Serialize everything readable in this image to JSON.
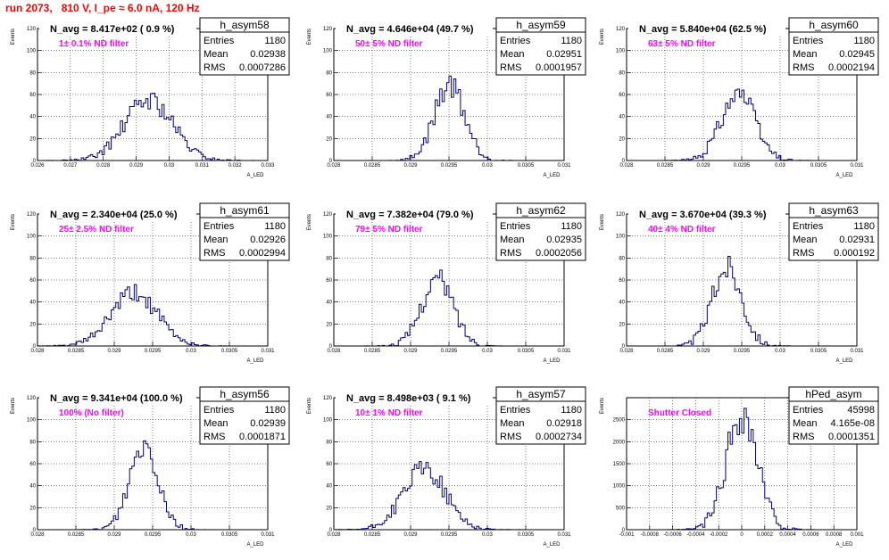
{
  "page": {
    "title": "run 2073,   810 V, I_pe ≈ 6.0 nA, 120 Hz"
  },
  "colors": {
    "title": "#ff0000",
    "note": "#ff00ff",
    "hist_line": "#000080",
    "grid": "#000000"
  },
  "chart_data": [
    {
      "type": "histogram",
      "name": "h_asym58",
      "title": "N_avg = 8.417e+02 ( 0.9 %)",
      "note": "1± 0.1% ND filter",
      "stats": [
        [
          "Entries",
          "1180"
        ],
        [
          "Mean",
          "0.02938"
        ],
        [
          "RMS",
          "0.0007286"
        ]
      ],
      "xlabel": "A_LED",
      "ylabel": "Events",
      "xlim": [
        0.026,
        0.033
      ],
      "ylim": [
        0,
        120
      ],
      "xticks": [
        "0.026",
        "0.027",
        "0.028",
        "0.029",
        "0.03",
        "0.031",
        "0.032",
        "0.033"
      ],
      "yticks": [
        "0",
        "20",
        "40",
        "60",
        "80",
        "100",
        "120"
      ],
      "grid": true,
      "peak": 60,
      "mean": 0.02938,
      "rms": 0.0007286,
      "seed": 58
    },
    {
      "type": "histogram",
      "name": "h_asym59",
      "title": "N_avg = 4.646e+04 (49.7 %)",
      "note": "50± 5% ND filter",
      "stats": [
        [
          "Entries",
          "1180"
        ],
        [
          "Mean",
          "0.02951"
        ],
        [
          "RMS",
          "0.0001957"
        ]
      ],
      "xlabel": "A_LED",
      "ylabel": "Events",
      "xlim": [
        0.028,
        0.031
      ],
      "ylim": [
        0,
        120
      ],
      "xticks": [
        "0.028",
        "0.0285",
        "0.029",
        "0.0295",
        "0.03",
        "0.0305",
        "0.031"
      ],
      "yticks": [
        "0",
        "20",
        "40",
        "60",
        "80",
        "100",
        "120"
      ],
      "grid": true,
      "peak": 76,
      "mean": 0.02951,
      "rms": 0.0001957,
      "seed": 59
    },
    {
      "type": "histogram",
      "name": "h_asym60",
      "title": "N_avg = 5.840e+04 (62.5 %)",
      "note": "63± 5% ND filter",
      "stats": [
        [
          "Entries",
          "1180"
        ],
        [
          "Mean",
          "0.02945"
        ],
        [
          "RMS",
          "0.0002194"
        ]
      ],
      "xlabel": "A_LED",
      "ylabel": "Events",
      "xlim": [
        0.028,
        0.031
      ],
      "ylim": [
        0,
        120
      ],
      "xticks": [
        "0.028",
        "0.0285",
        "0.029",
        "0.0295",
        "0.03",
        "0.0305",
        "0.031"
      ],
      "yticks": [
        "0",
        "20",
        "40",
        "60",
        "80",
        "100",
        "120"
      ],
      "grid": true,
      "peak": 68,
      "mean": 0.02945,
      "rms": 0.0002194,
      "seed": 60
    },
    {
      "type": "histogram",
      "name": "h_asym61",
      "title": "N_avg = 2.340e+04 (25.0 %)",
      "note": "25± 2.5% ND filter",
      "stats": [
        [
          "Entries",
          "1180"
        ],
        [
          "Mean",
          "0.02926"
        ],
        [
          "RMS",
          "0.0002994"
        ]
      ],
      "xlabel": "A_LED",
      "ylabel": "Events",
      "xlim": [
        0.028,
        0.031
      ],
      "ylim": [
        0,
        120
      ],
      "xticks": [
        "0.028",
        "0.0285",
        "0.029",
        "0.0295",
        "0.03",
        "0.0305",
        "0.031"
      ],
      "yticks": [
        "0",
        "20",
        "40",
        "60",
        "80",
        "100",
        "120"
      ],
      "grid": true,
      "peak": 52,
      "mean": 0.02926,
      "rms": 0.0002994,
      "seed": 61
    },
    {
      "type": "histogram",
      "name": "h_asym62",
      "title": "N_avg = 7.382e+04 (79.0 %)",
      "note": "79± 5% ND filter",
      "stats": [
        [
          "Entries",
          "1180"
        ],
        [
          "Mean",
          "0.02935"
        ],
        [
          "RMS",
          "0.0002056"
        ]
      ],
      "xlabel": "A_LED",
      "ylabel": "Events",
      "xlim": [
        0.028,
        0.031
      ],
      "ylim": [
        0,
        120
      ],
      "xticks": [
        "0.028",
        "0.0285",
        "0.029",
        "0.0295",
        "0.03",
        "0.0305",
        "0.031"
      ],
      "yticks": [
        "0",
        "20",
        "40",
        "60",
        "80",
        "100",
        "120"
      ],
      "grid": true,
      "peak": 66,
      "mean": 0.02935,
      "rms": 0.0002056,
      "seed": 62
    },
    {
      "type": "histogram",
      "name": "h_asym63",
      "title": "N_avg = 3.670e+04 (39.3 %)",
      "note": "40± 4% ND filter",
      "stats": [
        [
          "Entries",
          "1180"
        ],
        [
          "Mean",
          "0.02931"
        ],
        [
          "RMS",
          "0.000192"
        ]
      ],
      "xlabel": "A_LED",
      "ylabel": "Events",
      "xlim": [
        0.028,
        0.031
      ],
      "ylim": [
        0,
        120
      ],
      "xticks": [
        "0.028",
        "0.0285",
        "0.029",
        "0.0295",
        "0.03",
        "0.0305",
        "0.031"
      ],
      "yticks": [
        "0",
        "20",
        "40",
        "60",
        "80",
        "100",
        "120"
      ],
      "grid": true,
      "peak": 78,
      "mean": 0.02931,
      "rms": 0.000192,
      "seed": 63
    },
    {
      "type": "histogram",
      "name": "h_asym56",
      "title": "N_avg = 9.341e+04 (100.0 %)",
      "note": "100% (No filter)",
      "stats": [
        [
          "Entries",
          "1180"
        ],
        [
          "Mean",
          "0.02939"
        ],
        [
          "RMS",
          "0.0001871"
        ]
      ],
      "xlabel": "A_LED",
      "ylabel": "Events",
      "xlim": [
        0.028,
        0.031
      ],
      "ylim": [
        0,
        120
      ],
      "xticks": [
        "0.028",
        "0.0285",
        "0.029",
        "0.0295",
        "0.03",
        "0.0305",
        "0.031"
      ],
      "yticks": [
        "0",
        "20",
        "40",
        "60",
        "80",
        "100",
        "120"
      ],
      "grid": true,
      "peak": 85,
      "mean": 0.02939,
      "rms": 0.0001871,
      "seed": 56
    },
    {
      "type": "histogram",
      "name": "h_asym57",
      "title": "N_avg = 8.498e+03 ( 9.1 %)",
      "note": "10± 1% ND filter",
      "stats": [
        [
          "Entries",
          "1180"
        ],
        [
          "Mean",
          "0.02918"
        ],
        [
          "RMS",
          "0.0002734"
        ]
      ],
      "xlabel": "A_LED",
      "ylabel": "Events",
      "xlim": [
        0.028,
        0.031
      ],
      "ylim": [
        0,
        120
      ],
      "xticks": [
        "0.028",
        "0.0285",
        "0.029",
        "0.0295",
        "0.03",
        "0.0305",
        "0.031"
      ],
      "yticks": [
        "0",
        "20",
        "40",
        "60",
        "80",
        "100",
        "120"
      ],
      "grid": true,
      "peak": 60,
      "mean": 0.02918,
      "rms": 0.0002734,
      "seed": 57
    },
    {
      "type": "histogram",
      "name": "hPed_asym",
      "title": "",
      "note": "Shutter Closed",
      "stats": [
        [
          "Entries",
          "45998"
        ],
        [
          "Mean",
          "4.165e-08"
        ],
        [
          "RMS",
          "0.0001351"
        ]
      ],
      "xlabel": "A_LED",
      "ylabel": "Events",
      "xlim": [
        -0.001,
        0.001
      ],
      "ylim": [
        0,
        3000
      ],
      "xticks": [
        "-0.001",
        "-0.0008",
        "-0.0006",
        "-0.0004",
        "-0.0002",
        "0",
        "0.0002",
        "0.0004",
        "0.0006",
        "0.0008",
        "0.001"
      ],
      "yticks": [
        "0",
        "500",
        "1000",
        "1500",
        "2000",
        "2500"
      ],
      "grid": true,
      "peak": 2850,
      "mean": 0.0,
      "rms": 0.0001351,
      "seed": 99
    }
  ]
}
